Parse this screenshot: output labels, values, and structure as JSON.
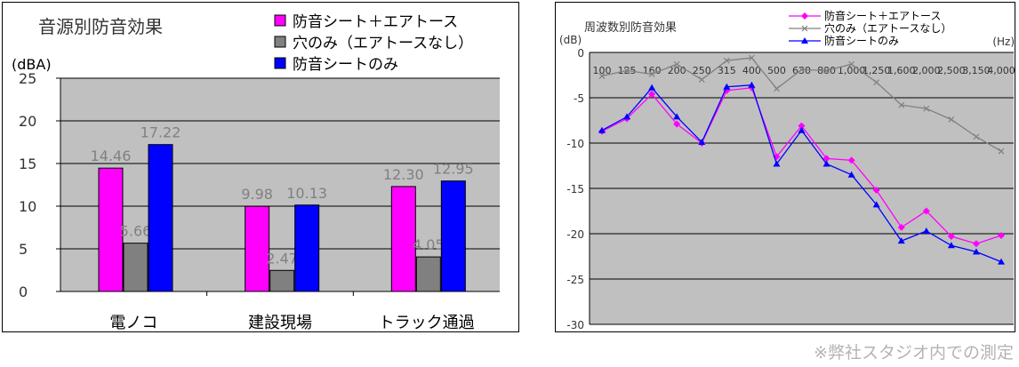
{
  "chart_data": [
    {
      "type": "bar",
      "title": "音源別防音効果",
      "ylabel": "(dBA)",
      "ylim": [
        0,
        25
      ],
      "yticks": [
        "0",
        "5",
        "10",
        "15",
        "20",
        "25"
      ],
      "grid": true,
      "legend": "top-right",
      "categories": [
        "電ノコ",
        "建設現場",
        "トラック通過"
      ],
      "series": [
        {
          "name": "防音シート＋エアトース",
          "values": [
            14.46,
            9.98,
            12.3
          ],
          "labels": [
            "14.46",
            "9.98",
            "12.30"
          ],
          "color": "#ff00ff"
        },
        {
          "name": "穴のみ（エアトースなし）",
          "values": [
            5.66,
            2.47,
            4.05
          ],
          "labels": [
            "5.66",
            "2.47",
            "4.05"
          ],
          "color": "#808080"
        },
        {
          "name": "防音シートのみ",
          "values": [
            17.22,
            10.13,
            12.95
          ],
          "labels": [
            "17.22",
            "10.13",
            "12.95"
          ],
          "color": "#0000ff"
        }
      ],
      "plot_bg": "#c0c0c0",
      "label_color": "#808080"
    },
    {
      "type": "line",
      "title": "周波数別防音効果",
      "ylabel": "(dB)",
      "xlabel": "(Hz)",
      "ylim": [
        -30,
        0
      ],
      "yticks": [
        "0",
        "-5",
        "-10",
        "-15",
        "-20",
        "-25",
        "-30"
      ],
      "grid": true,
      "legend": "top-center",
      "x": [
        "100",
        "125",
        "160",
        "200",
        "250",
        "315",
        "400",
        "500",
        "630",
        "800",
        "1,000",
        "1,250",
        "1,600",
        "2,000",
        "2,500",
        "3,150",
        "4,000"
      ],
      "series": [
        {
          "name": "防音シート＋エアトース",
          "values": [
            -8.7,
            -7.3,
            -4.6,
            -7.9,
            -10.0,
            -4.2,
            -3.9,
            -11.5,
            -8.1,
            -11.7,
            -11.9,
            -15.2,
            -19.3,
            -17.5,
            -20.3,
            -21.1,
            -20.2
          ],
          "color": "#ff00ff",
          "marker": "diamond"
        },
        {
          "name": "穴のみ（エアトースなし）",
          "values": [
            -2.6,
            -2.0,
            -2.4,
            -1.3,
            -3.0,
            -0.9,
            -0.6,
            -4.0,
            -1.9,
            -2.0,
            -1.3,
            -3.3,
            -5.8,
            -6.2,
            -7.4,
            -9.3,
            -10.9
          ],
          "color": "#808080",
          "marker": "x"
        },
        {
          "name": "防音シートのみ",
          "values": [
            -8.6,
            -7.1,
            -3.9,
            -7.1,
            -9.9,
            -3.8,
            -3.6,
            -12.3,
            -8.6,
            -12.3,
            -13.5,
            -16.8,
            -20.8,
            -19.7,
            -21.3,
            -22.0,
            -23.1
          ],
          "color": "#0000ff",
          "marker": "triangle"
        }
      ],
      "plot_bg": "#c0c0c0"
    }
  ],
  "footnote": "※弊社スタジオ内での測定"
}
